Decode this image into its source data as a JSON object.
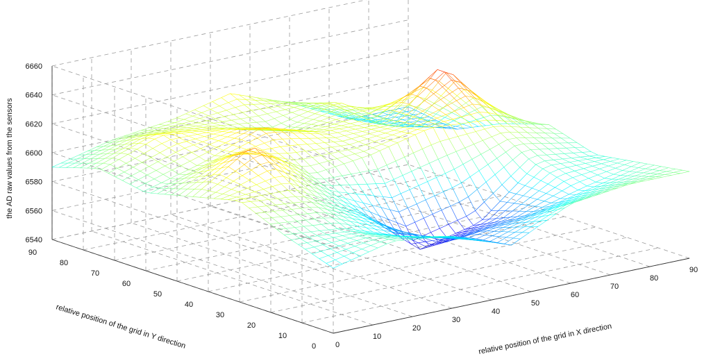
{
  "chart_data": {
    "type": "mesh",
    "x_axis": {
      "label": "relative position of the grid in X direction",
      "range": [
        0,
        90
      ],
      "ticks": [
        0,
        10,
        20,
        30,
        40,
        50,
        60,
        70,
        80,
        90
      ]
    },
    "y_axis": {
      "label": "relative position of the grid in Y direction",
      "range": [
        0,
        90
      ],
      "ticks": [
        0,
        10,
        20,
        30,
        40,
        50,
        60,
        70,
        80,
        90
      ]
    },
    "z_axis": {
      "label": "the AD raw values from the sensors",
      "range": [
        6540,
        6660
      ],
      "ticks": [
        6540,
        6560,
        6580,
        6600,
        6620,
        6640,
        6660
      ]
    },
    "grid": true,
    "colormap": "jet",
    "surface_samples": {
      "x": [
        0,
        15,
        30,
        45,
        60,
        75,
        90
      ],
      "y": [
        0,
        15,
        30,
        45,
        60,
        75,
        90
      ],
      "z_rows_by_y": [
        [
          6585,
          6595,
          6590,
          6575,
          6595,
          6600,
          6600
        ],
        [
          6596,
          6592,
          6578,
          6570,
          6575,
          6585,
          6595
        ],
        [
          6610,
          6606,
          6585,
          6550,
          6560,
          6595,
          6590
        ],
        [
          6602,
          6628,
          6600,
          6605,
          6615,
          6612,
          6600
        ],
        [
          6594,
          6605,
          6622,
          6610,
          6608,
          6640,
          6590
        ],
        [
          6600,
          6615,
          6610,
          6600,
          6612,
          6585,
          6575
        ],
        [
          6590,
          6600,
          6605,
          6615,
          6600,
          6580,
          6580
        ]
      ]
    }
  }
}
